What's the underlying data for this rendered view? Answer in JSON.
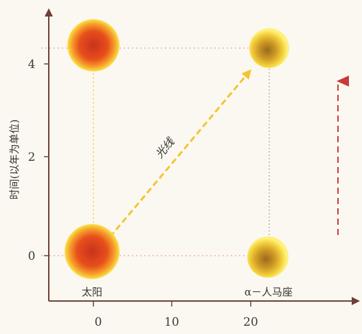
{
  "diagram": {
    "y_axis_label": "时间(以年为单位)",
    "y_ticks": [
      "4",
      "2",
      "0"
    ],
    "x_ticks": [
      "0",
      "10",
      "20"
    ],
    "sun_label": "太阳",
    "star_label": "α－人马座",
    "light_label": "光线",
    "colors": {
      "axis": "#6e4037",
      "guide": "#e8a0a0",
      "light_ray": "#f2c531",
      "time_arrow": "#c93a3a",
      "sun_core": "#e0431b",
      "star_core": "#c98a1a"
    }
  }
}
